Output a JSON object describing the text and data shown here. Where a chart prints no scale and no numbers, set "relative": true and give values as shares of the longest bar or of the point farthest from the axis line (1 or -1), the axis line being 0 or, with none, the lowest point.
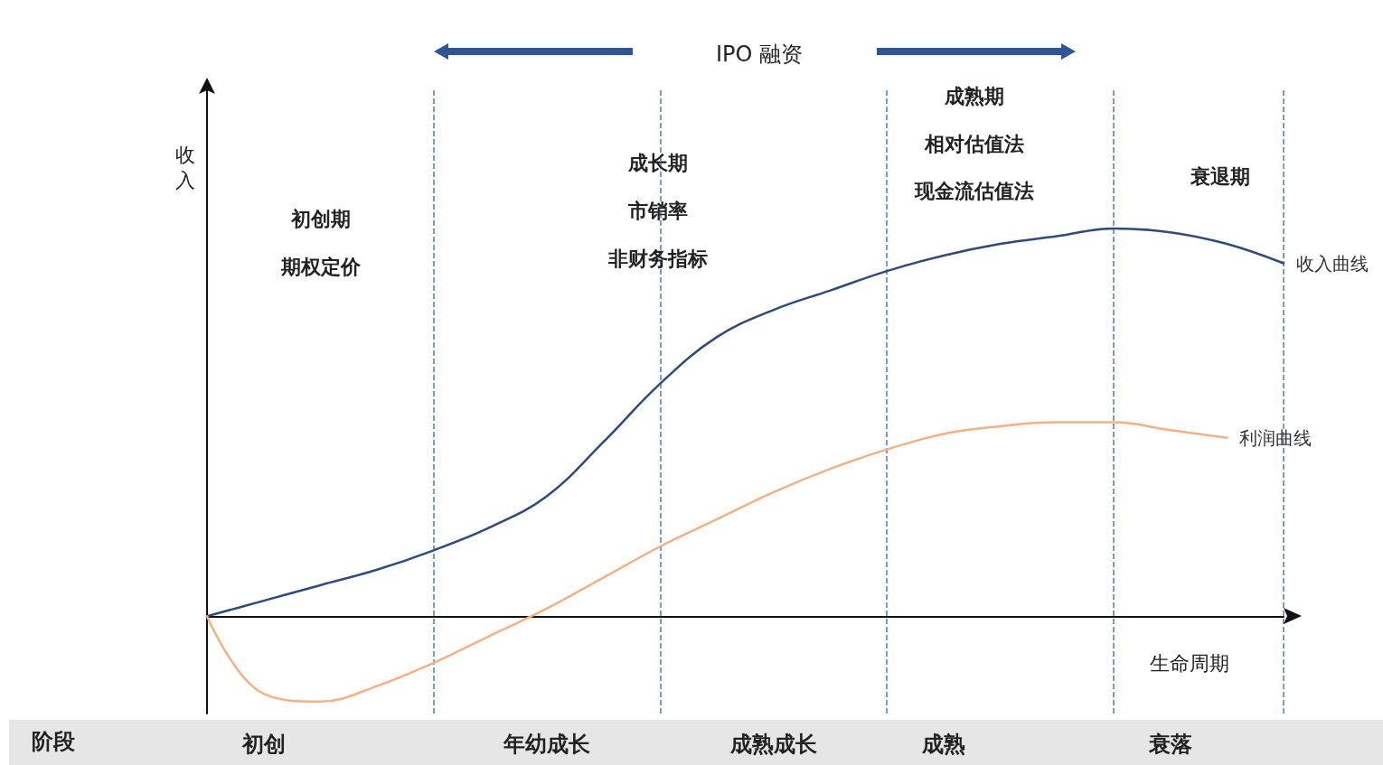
{
  "chart_data": {
    "type": "line",
    "relative": true,
    "xlabel": "生命周期",
    "ylabel": "收入",
    "tick_labels": "x",
    "grid": "x",
    "categories": [
      null,
      "初创",
      null,
      null,
      null,
      null,
      "年幼成长",
      null,
      null,
      null,
      "成熟成长",
      null,
      null,
      "成熟",
      null,
      null,
      null,
      "衰落",
      null,
      null
    ],
    "series": [
      {
        "name": "收入曲线",
        "color": "#2f4a7c",
        "values": [
          0,
          0.04,
          0.08,
          0.12,
          0.17,
          0.23,
          0.31,
          0.45,
          0.6,
          0.72,
          0.79,
          0.84,
          0.89,
          0.93,
          0.96,
          0.98,
          1,
          0.99,
          0.96,
          0.91
        ]
      },
      {
        "name": "利润曲线",
        "color": "#f4b183",
        "values": [
          0,
          -0.2,
          -0.22,
          -0.18,
          -0.12,
          -0.05,
          0.02,
          0.1,
          0.18,
          0.25,
          0.32,
          0.38,
          0.43,
          0.47,
          0.49,
          0.5,
          0.5,
          0.48,
          0.46,
          null
        ]
      }
    ],
    "annotations": [
      "IPO 融资",
      "初创期",
      "期权定价",
      "成长期",
      "市销率",
      "非财务指标",
      "成熟期",
      "相对估值法",
      "现金流估值法",
      "衰退期",
      "阶段"
    ]
  }
}
